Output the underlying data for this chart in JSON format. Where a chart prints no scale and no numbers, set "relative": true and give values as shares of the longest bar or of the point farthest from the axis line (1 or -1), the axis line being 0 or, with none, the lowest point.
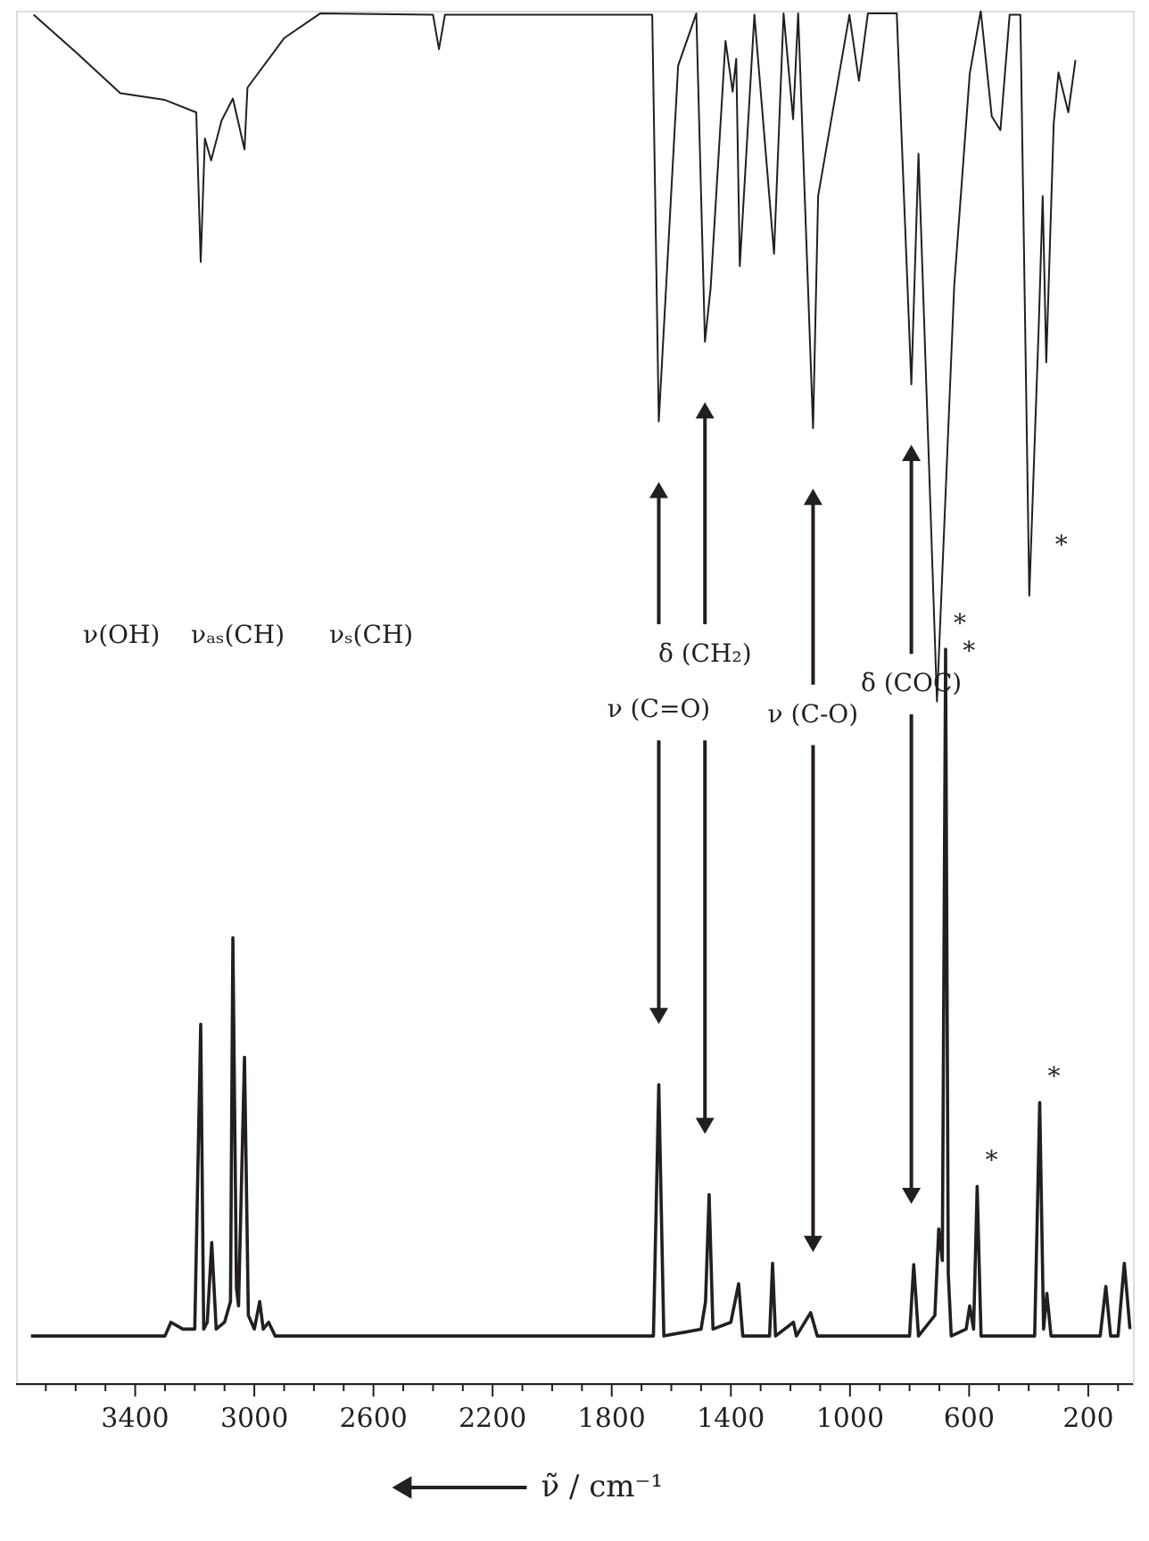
{
  "chart_data": {
    "type": "line",
    "relative": true,
    "xlabel": "ν̃ / cm⁻¹",
    "xlim": [
      3800,
      50
    ],
    "xticks": [
      {
        "value": 3700,
        "label": null
      },
      {
        "value": 3600,
        "label": null
      },
      {
        "value": 3500,
        "label": null
      },
      3400,
      {
        "value": 3300,
        "label": null
      },
      {
        "value": 3200,
        "label": null
      },
      {
        "value": 3100,
        "label": null
      },
      3000,
      {
        "value": 2900,
        "label": null
      },
      {
        "value": 2800,
        "label": null
      },
      {
        "value": 2700,
        "label": null
      },
      2600,
      {
        "value": 2500,
        "label": null
      },
      {
        "value": 2400,
        "label": null
      },
      {
        "value": 2300,
        "label": null
      },
      2200,
      {
        "value": 2100,
        "label": null
      },
      {
        "value": 2000,
        "label": null
      },
      {
        "value": 1900,
        "label": null
      },
      1800,
      {
        "value": 1700,
        "label": null
      },
      {
        "value": 1600,
        "label": null
      },
      {
        "value": 1500,
        "label": null
      },
      1400,
      {
        "value": 1300,
        "label": null
      },
      {
        "value": 1200,
        "label": null
      },
      {
        "value": 1100,
        "label": null
      },
      1000,
      {
        "value": 900,
        "label": null
      },
      {
        "value": 800,
        "label": null
      },
      {
        "value": 700,
        "label": null
      },
      600,
      {
        "value": 500,
        "label": null
      },
      {
        "value": 400,
        "label": null
      },
      {
        "value": 300,
        "label": null
      },
      200,
      {
        "value": 100,
        "label": null
      }
    ],
    "grid": false,
    "marker": "none",
    "line_style": "solid",
    "series": [
      {
        "color": "#231f20",
        "x": [
          3741,
          3600,
          3450,
          3300,
          3195,
          3180,
          3166,
          3145,
          3110,
          3072,
          3033,
          3023,
          2900,
          2779,
          2400,
          2380,
          2360,
          1900,
          1664,
          1642,
          1577,
          1516,
          1487,
          1468,
          1418,
          1394,
          1382,
          1370,
          1321,
          1255,
          1223,
          1191,
          1174,
          1124,
          1107,
          1002,
          970,
          940,
          843,
          794,
          770,
          708,
          650,
          598,
          561,
          524,
          495,
          464,
          428,
          398,
          366,
          353,
          341,
          316,
          300,
          267,
          243
        ],
        "values": [
          0.997,
          0.97,
          0.94,
          0.935,
          0.926,
          0.817,
          0.907,
          0.891,
          0.92,
          0.936,
          0.899,
          0.944,
          0.98,
          0.998,
          0.997,
          0.972,
          0.997,
          0.997,
          0.997,
          0.701,
          0.96,
          0.998,
          0.759,
          0.798,
          0.978,
          0.941,
          0.965,
          0.814,
          0.997,
          0.823,
          0.998,
          0.921,
          0.998,
          0.696,
          0.865,
          0.997,
          0.949,
          0.998,
          0.998,
          0.728,
          0.896,
          0.497,
          0.8,
          0.954,
          1.0,
          0.923,
          0.913,
          0.997,
          0.997,
          0.574,
          0.772,
          0.865,
          0.744,
          0.918,
          0.955,
          0.926,
          0.964
        ]
      },
      {
        "color": "#231f20",
        "x": [
          3750,
          3400,
          3300,
          3280,
          3240,
          3200,
          3180,
          3170,
          3158,
          3143,
          3128,
          3100,
          3080,
          3072,
          3060,
          3053,
          3033,
          3020,
          3000,
          2982,
          2970,
          2952,
          2930,
          2500,
          2000,
          1660,
          1642,
          1625,
          1500,
          1485,
          1473,
          1460,
          1400,
          1374,
          1360,
          1270,
          1260,
          1250,
          1190,
          1180,
          1132,
          1110,
          800,
          786,
          770,
          715,
          702,
          690,
          679,
          670,
          660,
          610,
          598,
          585,
          573,
          560,
          380,
          363,
          350,
          339,
          325,
          160,
          141,
          125,
          100,
          79,
          60
        ],
        "values": [
          0.035,
          0.035,
          0.035,
          0.045,
          0.04,
          0.04,
          0.262,
          0.04,
          0.045,
          0.103,
          0.04,
          0.045,
          0.06,
          0.325,
          0.07,
          0.057,
          0.238,
          0.05,
          0.04,
          0.06,
          0.04,
          0.045,
          0.035,
          0.035,
          0.035,
          0.035,
          0.218,
          0.035,
          0.04,
          0.06,
          0.138,
          0.04,
          0.045,
          0.073,
          0.035,
          0.035,
          0.088,
          0.035,
          0.045,
          0.035,
          0.052,
          0.035,
          0.035,
          0.087,
          0.035,
          0.05,
          0.113,
          0.09,
          0.535,
          0.08,
          0.035,
          0.04,
          0.057,
          0.04,
          0.144,
          0.035,
          0.035,
          0.205,
          0.04,
          0.066,
          0.035,
          0.035,
          0.071,
          0.035,
          0.035,
          0.088,
          0.04
        ]
      }
    ],
    "annotations": [
      "ν(OH)",
      "νₐₛ(CH)",
      "νₛ(CH)",
      "ν (C=O)",
      "δ (CH₂)",
      "ν (C-O)",
      "δ (COC)",
      {
        "text": "*",
        "x": 708,
        "y": 0.497
      },
      {
        "text": "*",
        "x": 398,
        "y": 0.574
      },
      {
        "text": "*",
        "x": 679,
        "y": 0.535
      },
      {
        "text": "*",
        "x": 573,
        "y": 0.144
      },
      {
        "text": "*",
        "x": 363,
        "y": 0.205
      }
    ]
  }
}
